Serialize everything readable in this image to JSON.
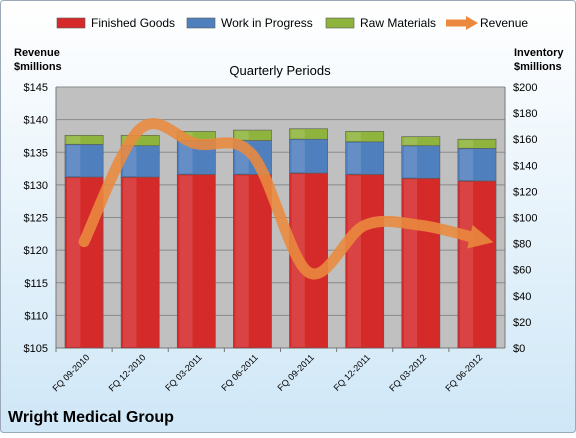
{
  "chart_data": {
    "type": "bar",
    "subtitle": "Quarterly Periods",
    "company": "Wright Medical Group",
    "left_axis_label": [
      "Revenue",
      "$millions"
    ],
    "right_axis_label": [
      "Inventory",
      "$millions"
    ],
    "categories": [
      "FQ 09-2010",
      "FQ 12-2010",
      "FQ 03-2011",
      "FQ 06-2011",
      "FQ 09-2011",
      "FQ 12-2011",
      "FQ 03-2012",
      "FQ 06-2012"
    ],
    "left_ticks": [
      "$105",
      "$110",
      "$115",
      "$120",
      "$125",
      "$130",
      "$135",
      "$140",
      "$145"
    ],
    "right_ticks": [
      "$0",
      "$20",
      "$40",
      "$60",
      "$80",
      "$100",
      "$120",
      "$140",
      "$160",
      "$180",
      "$200"
    ],
    "left_ylim": [
      105,
      145
    ],
    "right_ylim": [
      0,
      200
    ],
    "legend_position": "top",
    "stacked": true,
    "series": [
      {
        "name": "Finished Goods",
        "axis": "right",
        "kind": "bar",
        "color": "#d42a2a",
        "values": [
          131,
          131,
          133,
          133,
          134,
          133,
          130,
          128
        ]
      },
      {
        "name": "Work in Progress",
        "axis": "right",
        "kind": "bar",
        "color": "#4f7fbd",
        "values": [
          25,
          24,
          26,
          26,
          26,
          25,
          25,
          25
        ]
      },
      {
        "name": "Raw Materials",
        "axis": "right",
        "kind": "bar",
        "color": "#8eb43d",
        "values": [
          7,
          8,
          7,
          8,
          8,
          8,
          7,
          7
        ]
      },
      {
        "name": "Revenue",
        "axis": "left",
        "kind": "line",
        "color": "#eb8a3e",
        "values": [
          121.3,
          138.6,
          136.3,
          134.6,
          116.6,
          123.8,
          123.8,
          121.8
        ]
      }
    ],
    "colors": {
      "plot_bg": "#c0c0c0",
      "page_bg_top": "#ffffff",
      "page_bg_bottom": "#cfe7f7",
      "border": "#9aa8b8"
    }
  }
}
